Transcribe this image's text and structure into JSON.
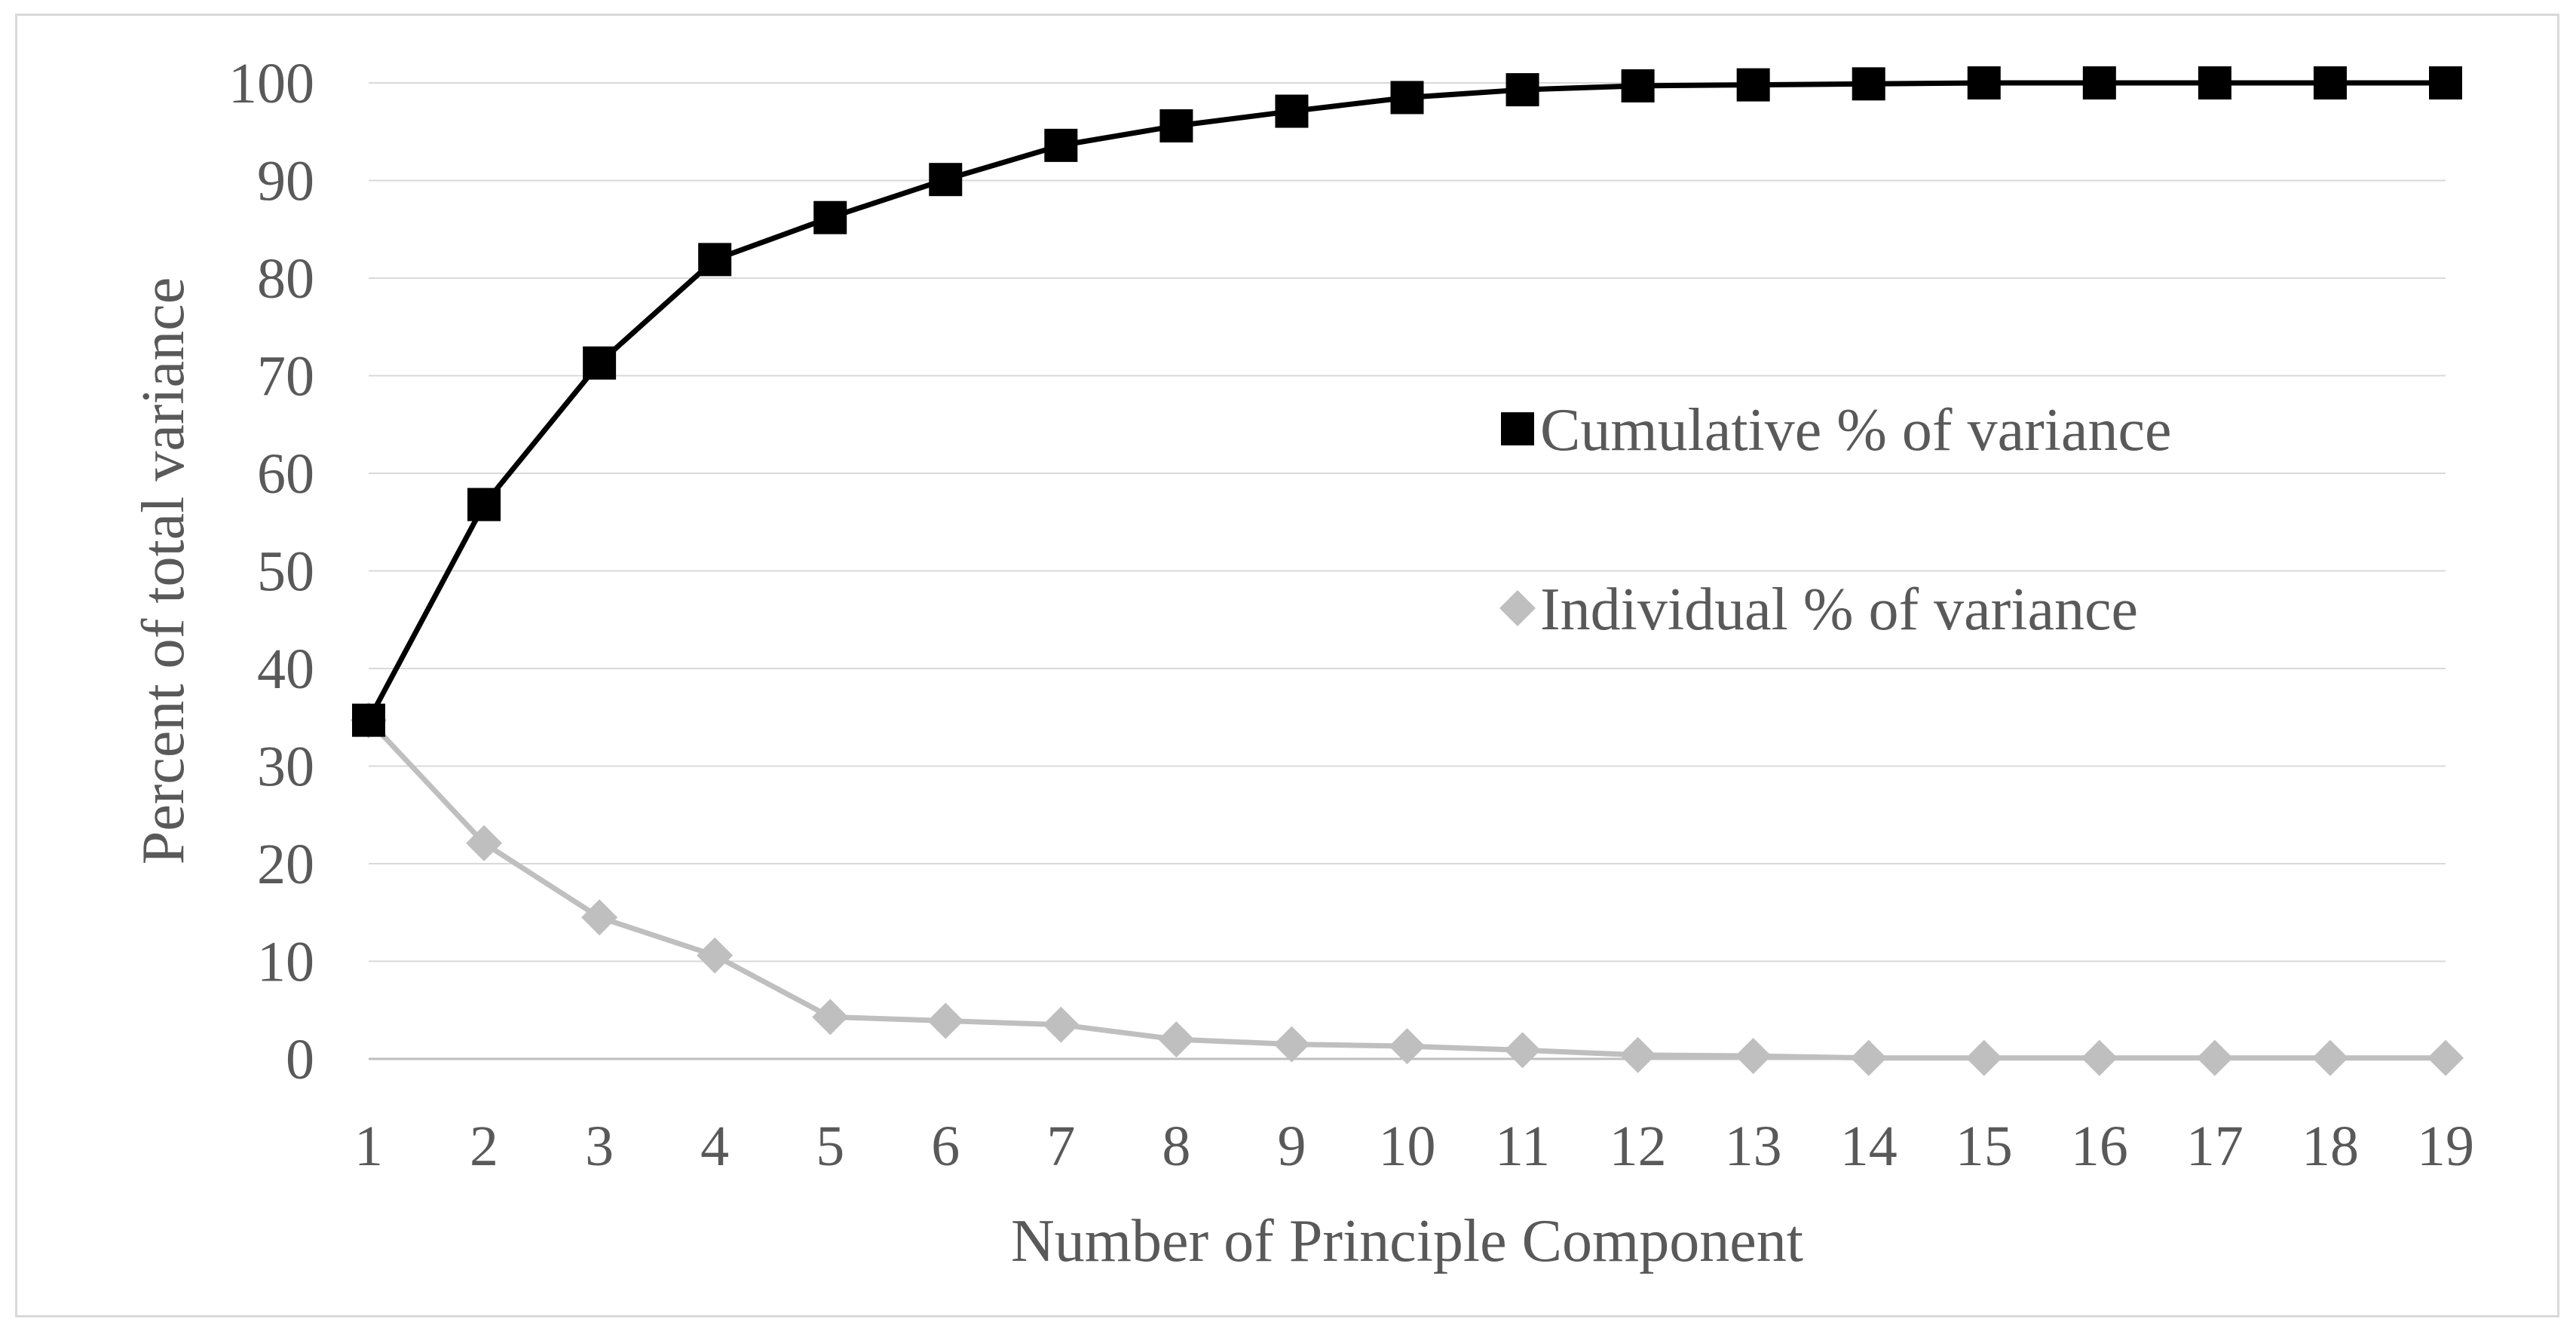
{
  "chart_data": {
    "type": "line",
    "title": "",
    "xlabel": "Number of Principle Component",
    "ylabel": "Percent of total variance",
    "x": [
      1,
      2,
      3,
      4,
      5,
      6,
      7,
      8,
      9,
      10,
      11,
      12,
      13,
      14,
      15,
      16,
      17,
      18,
      19
    ],
    "xlim": [
      1,
      19
    ],
    "ylim": [
      0,
      100
    ],
    "yticks": [
      0,
      10,
      20,
      30,
      40,
      50,
      60,
      70,
      80,
      90,
      100
    ],
    "grid": true,
    "legend_position": "right-middle",
    "series": [
      {
        "name": "Cumulative % of variance",
        "marker": "square",
        "color": "#000000",
        "values": [
          34.7,
          56.8,
          71.3,
          81.9,
          86.2,
          90.1,
          93.6,
          95.6,
          97.1,
          98.5,
          99.3,
          99.7,
          99.8,
          99.9,
          100,
          100,
          100,
          100,
          100
        ]
      },
      {
        "name": "Individual % of variance",
        "marker": "diamond",
        "color": "#bfbfbf",
        "values": [
          34.7,
          22.1,
          14.5,
          10.6,
          4.3,
          3.9,
          3.5,
          2.0,
          1.5,
          1.3,
          0.9,
          0.4,
          0.3,
          0.1,
          0.1,
          0.1,
          0.1,
          0.1,
          0.1
        ]
      }
    ]
  }
}
